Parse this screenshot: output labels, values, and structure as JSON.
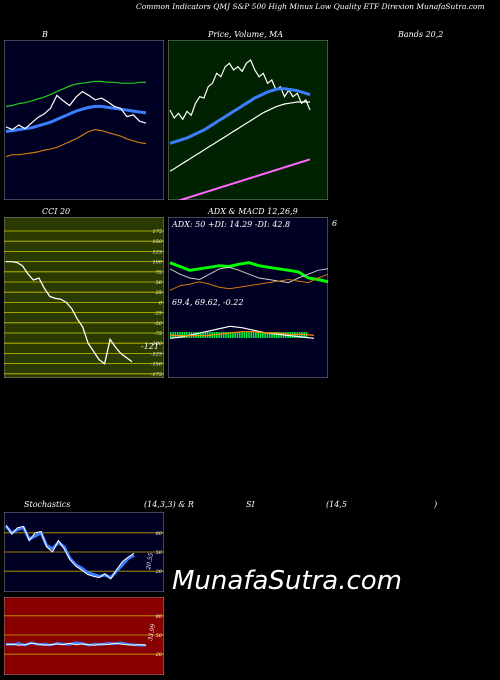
{
  "header": {
    "title": "Common Indicators QMJ S&P 500 High Minus Low Quality ETF Direxion MunafaSutra.com"
  },
  "watermark": "MunafaSutra.com",
  "colors": {
    "panel_dark": "#000022",
    "panel_green": "#002200",
    "panel_olive": "#2a3a00",
    "panel_red": "#880000",
    "blue": "#3b7fff",
    "green_line": "#22cc22",
    "orange_line": "#cc7711"
  },
  "labels": {
    "bands_b": "B",
    "bands_suffix": "Bands 20,2",
    "price_ma": "Price, Volume, MA",
    "cci": "CCI 20",
    "cci_value": "-121",
    "adx_macd": "ADX & MACD 12,26,9",
    "adx_values": "ADX: 50 +DI: 14.29 -DI: 42.8",
    "macd_values": "69.4, 69.62, -0.22",
    "six": "6",
    "stoch": "Stochastics",
    "stoch_params": "(14,3,3) & R",
    "rsi_si": "SI",
    "rsi_params": "(14,5",
    "rsi_close": ")",
    "stoch_value": "20.55",
    "rsi_value": "33.99"
  },
  "chart_data": [
    {
      "name": "Bollinger Bands",
      "type": "line",
      "series": [
        {
          "color": "#22cc22",
          "values": [
            120,
            121,
            123,
            124,
            126,
            128,
            130,
            133,
            136,
            139,
            142,
            144,
            145,
            146,
            147,
            147,
            146,
            146,
            145,
            145,
            145,
            146,
            146
          ]
        },
        {
          "color": "#3b7fff",
          "values": [
            93,
            94,
            95,
            96,
            97,
            99,
            101,
            103,
            106,
            109,
            112,
            115,
            117,
            119,
            120,
            120,
            119,
            118,
            117,
            116,
            115,
            114,
            113
          ]
        },
        {
          "color": "#ffffff",
          "values": [
            98,
            95,
            100,
            96,
            102,
            108,
            112,
            118,
            132,
            126,
            121,
            130,
            136,
            132,
            127,
            129,
            125,
            120,
            118,
            109,
            111,
            104,
            102
          ]
        },
        {
          "color": "#cc7711",
          "values": [
            66,
            68,
            68,
            69,
            70,
            71,
            73,
            74,
            76,
            79,
            82,
            85,
            89,
            93,
            95,
            94,
            92,
            90,
            88,
            85,
            83,
            81,
            80
          ]
        }
      ]
    },
    {
      "name": "Price MA",
      "type": "line",
      "series": [
        {
          "color": "#ffffff",
          "values": [
            100,
            88,
            95,
            86,
            98,
            92,
            110,
            120,
            118,
            135,
            140,
            155,
            150,
            165,
            170,
            160,
            165,
            158,
            170,
            175,
            160,
            150,
            155,
            140,
            145,
            130,
            135,
            120,
            130,
            120,
            125,
            110,
            115,
            100
          ]
        },
        {
          "color": "#3b7fff",
          "values": [
            50,
            52,
            54,
            56,
            58,
            61,
            64,
            67,
            70,
            74,
            78,
            82,
            86,
            90,
            94,
            98,
            102,
            106,
            110,
            114,
            118,
            121,
            124,
            127,
            129,
            131,
            132,
            132,
            131,
            130,
            129,
            127,
            125,
            123
          ]
        },
        {
          "color": "#ffffff",
          "values": [
            8,
            12,
            16,
            20,
            24,
            28,
            32,
            36,
            40,
            44,
            48,
            52,
            56,
            60,
            64,
            68,
            72,
            76,
            80,
            84,
            88,
            92,
            96,
            99,
            102,
            105,
            107,
            109,
            110,
            111,
            112,
            112,
            112,
            112
          ]
        },
        {
          "color": "#ff66ff",
          "values": [
            -40,
            -38,
            -36,
            -34,
            -32,
            -30,
            -28,
            -26,
            -24,
            -22,
            -20,
            -18,
            -16,
            -14,
            -12,
            -10,
            -8,
            -6,
            -4,
            -2,
            0,
            2,
            4,
            6,
            8,
            10,
            12,
            14,
            16,
            18,
            20,
            22,
            24,
            26
          ]
        }
      ]
    },
    {
      "name": "CCI 20",
      "type": "line",
      "yticks": [
        175,
        150,
        125,
        100,
        75,
        50,
        25,
        0,
        -25,
        -50,
        -75,
        -100,
        -125,
        -150,
        -175
      ],
      "ylim": [
        -175,
        175
      ],
      "values": [
        100,
        100,
        98,
        90,
        70,
        55,
        60,
        35,
        15,
        10,
        8,
        0,
        -15,
        -40,
        -60,
        -100,
        -120,
        -140,
        -150,
        -90,
        -110,
        -125,
        -135,
        -145
      ]
    },
    {
      "name": "ADX",
      "type": "line",
      "series": [
        {
          "color": "#00ff00",
          "values": [
            50,
            45,
            40,
            42,
            44,
            46,
            45,
            48,
            50,
            46,
            44,
            42,
            40,
            38,
            30,
            28,
            25
          ]
        },
        {
          "color": "#cccccc",
          "values": [
            42,
            35,
            30,
            28,
            35,
            42,
            44,
            40,
            35,
            30,
            28,
            26,
            24,
            30,
            35,
            40,
            42
          ]
        },
        {
          "color": "#cc7711",
          "values": [
            14,
            20,
            22,
            25,
            22,
            18,
            16,
            18,
            20,
            22,
            24,
            26,
            28,
            26,
            24,
            30,
            35
          ]
        }
      ]
    },
    {
      "name": "MACD",
      "type": "line",
      "series": [
        {
          "color": "#ffffff",
          "values": [
            69.4,
            69.5,
            69.7,
            69.9,
            70.1,
            70.3,
            70.2,
            70.0,
            69.8,
            69.7,
            69.6,
            69.5,
            69.4
          ]
        },
        {
          "color": "#ff8800",
          "values": [
            69.62,
            69.6,
            69.6,
            69.6,
            69.7,
            69.8,
            69.9,
            69.9,
            69.8,
            69.8,
            69.7,
            69.7,
            69.62
          ]
        }
      ]
    },
    {
      "name": "Stochastics",
      "type": "line",
      "yticks": [
        80,
        50,
        20
      ],
      "ylim": [
        0,
        100
      ],
      "series": [
        {
          "color": "#3b7fff",
          "values": [
            90,
            80,
            85,
            88,
            70,
            75,
            80,
            60,
            55,
            65,
            58,
            40,
            30,
            25,
            18,
            15,
            12,
            14,
            10,
            20,
            30,
            40,
            45
          ]
        },
        {
          "color": "#ffffff",
          "values": [
            92,
            78,
            88,
            90,
            68,
            80,
            82,
            58,
            50,
            68,
            55,
            38,
            28,
            22,
            15,
            12,
            10,
            16,
            8,
            22,
            35,
            42,
            48
          ]
        }
      ]
    },
    {
      "name": "RSI",
      "type": "line",
      "yticks": [
        80,
        50,
        20
      ],
      "ylim": [
        0,
        100
      ],
      "series": [
        {
          "color": "#3b7fff",
          "values": [
            36,
            35,
            37,
            34,
            38,
            35,
            36,
            34,
            37,
            36,
            35,
            38,
            37,
            34,
            36,
            35,
            37,
            36,
            38,
            36,
            35,
            34,
            33.99
          ]
        },
        {
          "color": "#ffffff",
          "values": [
            35,
            36,
            34,
            35,
            37,
            36,
            34,
            35,
            36,
            35,
            37,
            35,
            36,
            35,
            34,
            36,
            35,
            37,
            36,
            35,
            34,
            35,
            34
          ]
        }
      ]
    }
  ]
}
